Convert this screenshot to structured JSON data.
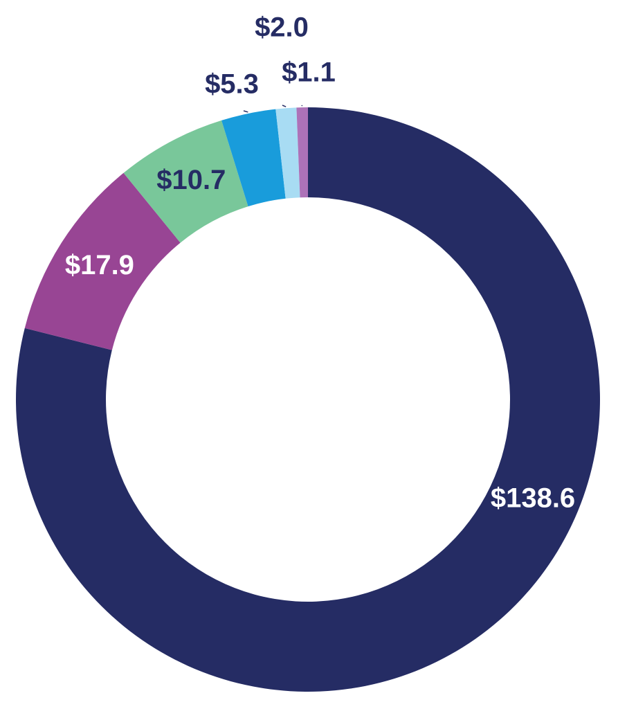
{
  "chart_data": {
    "type": "pie",
    "style": "donut",
    "title": "",
    "legend": "none",
    "categories": [
      "",
      "",
      "",
      "",
      "",
      ""
    ],
    "values": [
      138.6,
      17.9,
      10.7,
      5.3,
      2.0,
      1.1
    ],
    "labels": [
      "$138.6",
      "$17.9",
      "$10.7",
      "$5.3",
      "$2.0",
      "$1.1"
    ],
    "colors": [
      "#252c64",
      "#984594",
      "#79c79a",
      "#199cdb",
      "#a8dcf3",
      "#ad72b8"
    ],
    "label_colors": [
      "#ffffff",
      "#ffffff",
      "#252c64",
      "#252c64",
      "#252c64",
      "#252c64"
    ],
    "direction": "clockwise",
    "start": "12 o'clock"
  }
}
